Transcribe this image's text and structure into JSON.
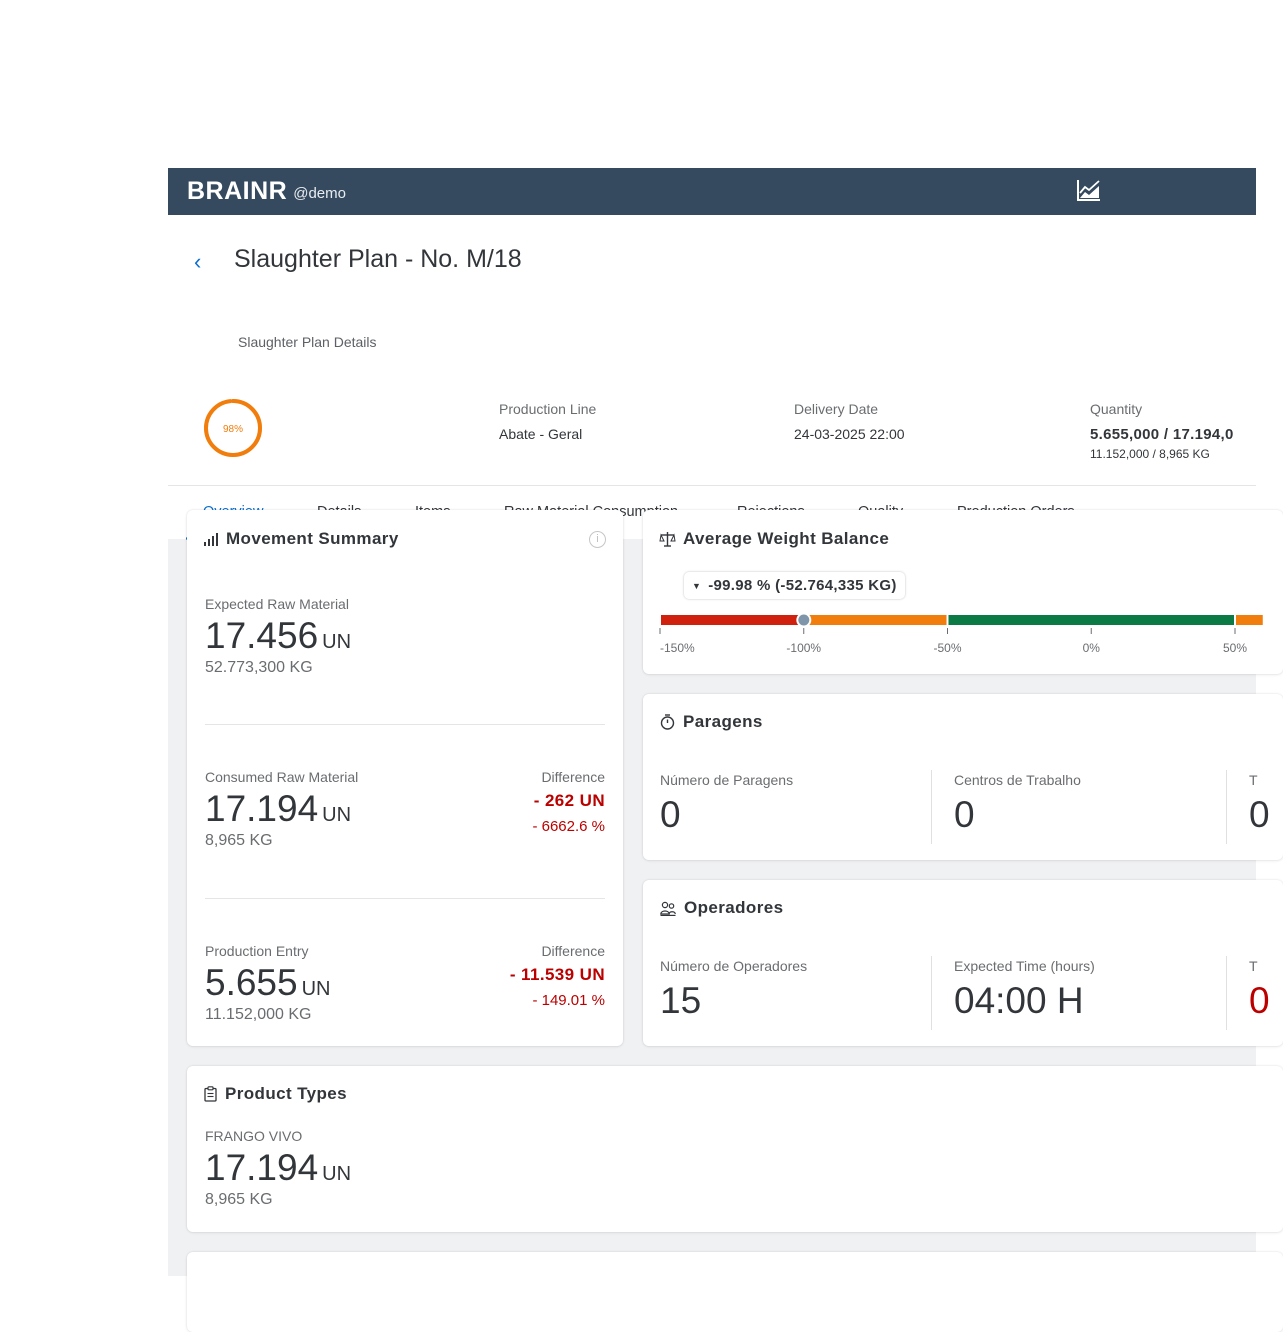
{
  "shell": {
    "brand": "BRAINR",
    "tenant": "@demo",
    "chart_icon": "area-chart-icon"
  },
  "header": {
    "back_icon": "chevron-left-icon",
    "title": "Slaughter Plan - No. M/18",
    "subtitle": "Slaughter Plan Details",
    "progress": {
      "value": 0.98,
      "label": "98%"
    },
    "production_line": {
      "label": "Production Line",
      "value": "Abate - Geral"
    },
    "delivery_date": {
      "label": "Delivery Date",
      "value": "24-03-2025 22:00"
    },
    "quantity": {
      "label": "Quantity",
      "value": "5.655,000 / 17.194,0",
      "sub": "11.152,000 / 8,965 KG"
    }
  },
  "tabs": [
    "Overview",
    "Details",
    "Items",
    "Raw Material Consumption",
    "Rejections",
    "Quality",
    "Production Orders"
  ],
  "movement_summary": {
    "title": "Movement Summary",
    "expected": {
      "label": "Expected Raw Material",
      "value": "17.456",
      "unit": "UN",
      "sub": "52.773,300 KG"
    },
    "consumed": {
      "label": "Consumed Raw Material",
      "value": "17.194",
      "unit": "UN",
      "sub": "8,965 KG",
      "diff_label": "Difference",
      "diff_value": "- 262 UN",
      "diff_pct": "- 6662.6 %"
    },
    "production": {
      "label": "Production Entry",
      "value": "5.655",
      "unit": "UN",
      "sub": "11.152,000 KG",
      "diff_label": "Difference",
      "diff_value": "- 11.539 UN",
      "diff_pct": "- 149.01 %"
    }
  },
  "weight_balance": {
    "title": "Average Weight Balance",
    "badge": "-99.98 % (-52.764,335 KG)",
    "marker_value": -99.98,
    "scale_min": -150,
    "scale_max": 50,
    "ticks": [
      "-150%",
      "-100%",
      "-50%",
      "0%",
      "50%"
    ],
    "colors": {
      "red": "#d0200e",
      "orange": "#f07d0c",
      "green": "#0c7a44"
    }
  },
  "paragens": {
    "title": "Paragens",
    "count": {
      "label": "Número de Paragens",
      "value": "0"
    },
    "centers": {
      "label": "Centros de Trabalho",
      "value": "0"
    },
    "third": {
      "label": "T",
      "value": "0"
    }
  },
  "operadores": {
    "title": "Operadores",
    "count": {
      "label": "Número de Operadores",
      "value": "15"
    },
    "expected": {
      "label": "Expected Time (hours)",
      "value": "04:00 H"
    },
    "third": {
      "label": "T",
      "value": "0"
    }
  },
  "product_types": {
    "title": "Product Types",
    "item": {
      "label": "FRANGO VIVO",
      "value": "17.194",
      "unit": "UN",
      "sub": "8,965 KG"
    }
  },
  "colors": {
    "shell": "#354a5f",
    "accent": "#0a6ed1",
    "negative": "#bb0000",
    "progress": "#f07d0c"
  }
}
